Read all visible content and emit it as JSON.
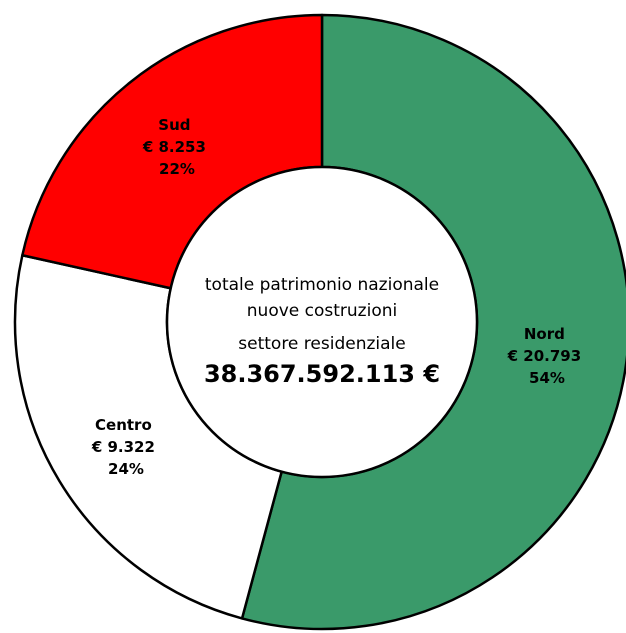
{
  "chart_data": {
    "type": "pie",
    "variant": "donut",
    "categories": [
      "Nord",
      "Centro",
      "Sud"
    ],
    "values": [
      20793,
      9322,
      8253
    ],
    "value_labels": [
      "€ 20.793",
      "€ 9.322",
      "€ 8.253"
    ],
    "percent_labels": [
      "54%",
      "24%",
      "22%"
    ],
    "colors": [
      "#3a9a6a",
      "#ffffff",
      "#ff0000"
    ],
    "start_angle_deg": 0,
    "direction": "clockwise",
    "center": {
      "line1": "totale patrimonio nazionale",
      "line2": "nuove costruzioni",
      "line3": "settore residenziale",
      "total": "38.367.592.113 €"
    },
    "legend": "none"
  }
}
